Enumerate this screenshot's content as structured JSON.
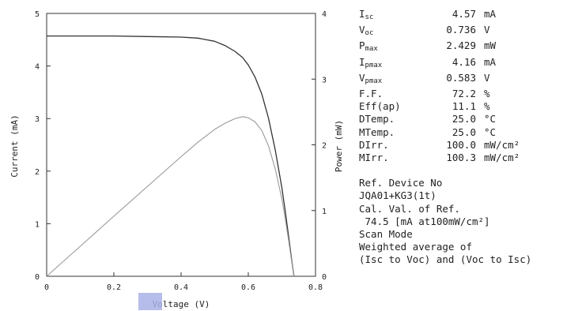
{
  "chart_data": {
    "type": "line",
    "xlabel": "Voltage (V)",
    "ylabel": "Current (mA)",
    "y2label": "Power (mW)",
    "xlim": [
      0,
      0.8
    ],
    "ylim": [
      0,
      5
    ],
    "y2lim": [
      0,
      4
    ],
    "xticks": [
      "0",
      "0.2",
      "0.4",
      "0.6",
      "0.8"
    ],
    "yticks": [
      "0",
      "1",
      "2",
      "3",
      "4",
      "5"
    ],
    "y2ticks": [
      "0",
      "1",
      "2",
      "3",
      "4"
    ],
    "grid": false,
    "series": [
      {
        "axis": "left",
        "color": "#333333",
        "x": [
          0,
          0.05,
          0.1,
          0.2,
          0.3,
          0.4,
          0.45,
          0.5,
          0.53,
          0.56,
          0.583,
          0.6,
          0.62,
          0.64,
          0.66,
          0.68,
          0.7,
          0.71,
          0.72,
          0.73,
          0.736
        ],
        "y": [
          4.57,
          4.57,
          4.57,
          4.57,
          4.56,
          4.55,
          4.53,
          4.47,
          4.39,
          4.28,
          4.16,
          4.02,
          3.79,
          3.47,
          3.01,
          2.41,
          1.68,
          1.23,
          0.76,
          0.26,
          0
        ]
      },
      {
        "axis": "right",
        "color": "#999999",
        "x": [
          0,
          0.1,
          0.2,
          0.3,
          0.4,
          0.45,
          0.5,
          0.53,
          0.56,
          0.583,
          0.6,
          0.62,
          0.64,
          0.66,
          0.68,
          0.7,
          0.71,
          0.72,
          0.73,
          0.736
        ],
        "y": [
          0,
          0.457,
          0.914,
          1.368,
          1.82,
          2.04,
          2.235,
          2.327,
          2.397,
          2.429,
          2.412,
          2.35,
          2.22,
          1.987,
          1.639,
          1.176,
          0.873,
          0.547,
          0.19,
          0
        ]
      }
    ]
  },
  "info": {
    "rows": [
      {
        "key": "Isc",
        "sub": "sc",
        "base": "I",
        "value": "4.57",
        "unit": "mA"
      },
      {
        "key": "Voc",
        "sub": "oc",
        "base": "V",
        "value": "0.736",
        "unit": "V"
      },
      {
        "key": "Pmax",
        "sub": "max",
        "base": "P",
        "value": "2.429",
        "unit": "mW"
      },
      {
        "key": "Ipmax",
        "sub": "pmax",
        "base": "I",
        "value": "4.16",
        "unit": "mA"
      },
      {
        "key": "Vpmax",
        "sub": "pmax",
        "base": "V",
        "value": "0.583",
        "unit": "V"
      },
      {
        "key": "F.F.",
        "sub": "",
        "base": "F.F.",
        "value": "72.2",
        "unit": "%"
      },
      {
        "key": "Eff(ap)",
        "sub": "",
        "base": "Eff(ap)",
        "value": "11.1",
        "unit": "%"
      },
      {
        "key": "DTemp.",
        "sub": "",
        "base": "DTemp.",
        "value": "25.0",
        "unit": "°C"
      },
      {
        "key": "MTemp.",
        "sub": "",
        "base": "MTemp.",
        "value": "25.0",
        "unit": "°C"
      },
      {
        "key": "DIrr.",
        "sub": "",
        "base": "DIrr.",
        "value": "100.0",
        "unit": "mW/cm²"
      },
      {
        "key": "MIrr.",
        "sub": "",
        "base": "MIrr.",
        "value": "100.3",
        "unit": "mW/cm²"
      }
    ],
    "notes": [
      "Ref. Device No",
      "JQA01+KG3(1t)",
      "Cal. Val. of Ref.",
      " 74.5 [mA at100mW/cm²]",
      "Scan Mode",
      "Weighted average of",
      "(Isc to Voc) and (Voc to Isc)"
    ]
  }
}
